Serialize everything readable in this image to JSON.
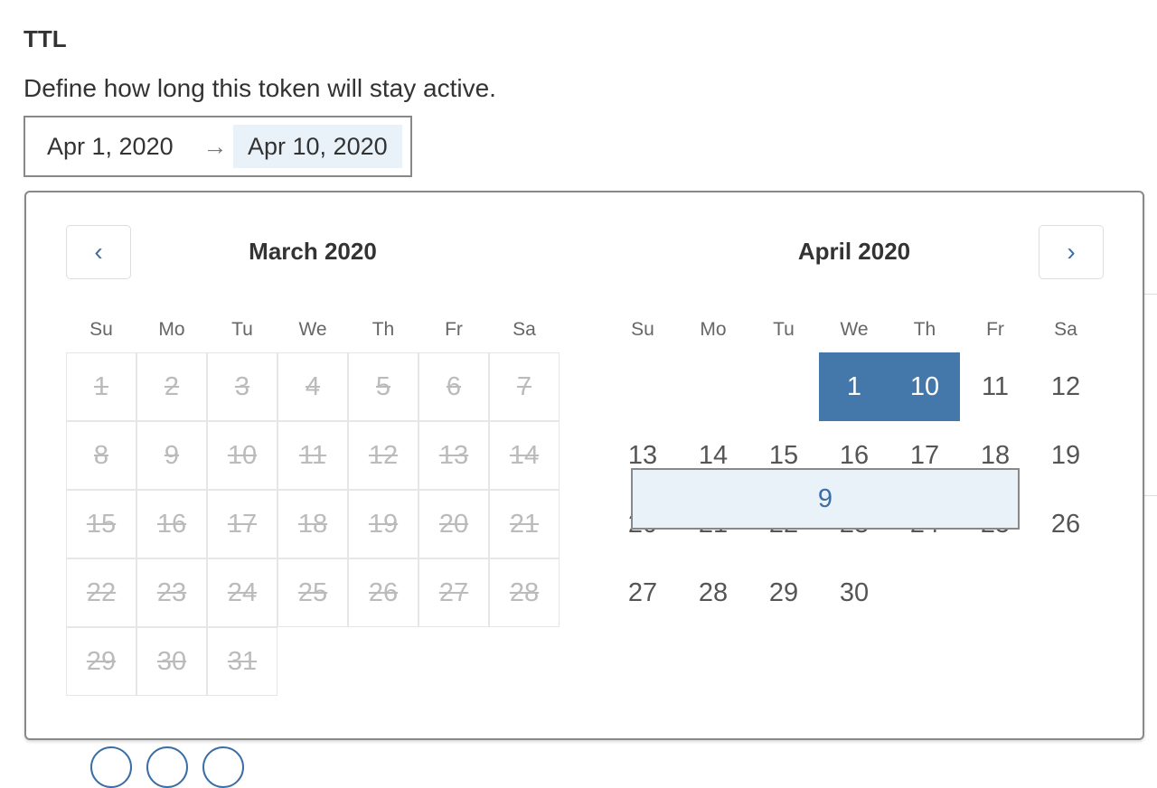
{
  "section_title": "TTL",
  "description": "Define how long this token will stay active.",
  "date_range": {
    "start": "Apr 1, 2020",
    "arrow": "→",
    "end": "Apr 10, 2020"
  },
  "weekdays": [
    "Su",
    "Mo",
    "Tu",
    "We",
    "Th",
    "Fr",
    "Sa"
  ],
  "months": [
    {
      "title": "March 2020",
      "offset": 0,
      "days": 31,
      "disabled_through": 31
    },
    {
      "title": "April 2020",
      "offset": 3,
      "days": 30,
      "disabled_through": 0
    }
  ],
  "selection": {
    "start": 1,
    "end": 10
  },
  "colors": {
    "selected": "#4478aa",
    "range": "#eaf2f9",
    "accent": "#3b6ea5"
  },
  "icons": {
    "prev": "chevron-left-icon",
    "next": "chevron-right-icon"
  }
}
